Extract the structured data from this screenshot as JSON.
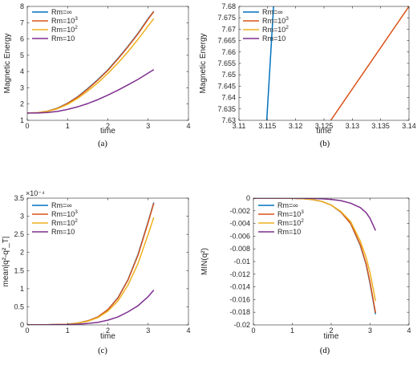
{
  "figure": {
    "colors": [
      "#0072BD",
      "#D95319",
      "#EDB120",
      "#7E2F8E"
    ]
  },
  "chart_data": [
    {
      "type": "line",
      "caption": "(a)",
      "xlabel": "time",
      "ylabel": "Magnetic Energy",
      "xlim": [
        0,
        4
      ],
      "ylim": [
        1,
        8
      ],
      "xticks": [
        0,
        1,
        2,
        3,
        4
      ],
      "yticks": [
        1,
        2,
        3,
        4,
        5,
        6,
        7,
        8
      ],
      "legend": {
        "position": "top-left",
        "entries": [
          {
            "base": "Rm=∞",
            "sup": ""
          },
          {
            "base": "Rm=10",
            "sup": "3"
          },
          {
            "base": "Rm=10",
            "sup": "2"
          },
          {
            "base": "Rm=10",
            "sup": ""
          }
        ]
      },
      "series": [
        {
          "x": [
            0,
            0.25,
            0.5,
            0.75,
            1,
            1.25,
            1.5,
            1.75,
            2,
            2.25,
            2.5,
            2.75,
            3,
            3.14
          ],
          "y": [
            1.45,
            1.47,
            1.56,
            1.75,
            2.05,
            2.45,
            2.95,
            3.5,
            4.1,
            4.8,
            5.55,
            6.35,
            7.25,
            7.7
          ]
        },
        {
          "x": [
            0,
            0.25,
            0.5,
            0.75,
            1,
            1.25,
            1.5,
            1.75,
            2,
            2.25,
            2.5,
            2.75,
            3,
            3.14
          ],
          "y": [
            1.45,
            1.47,
            1.56,
            1.74,
            2.04,
            2.43,
            2.92,
            3.47,
            4.07,
            4.77,
            5.52,
            6.32,
            7.22,
            7.68
          ]
        },
        {
          "x": [
            0,
            0.25,
            0.5,
            0.75,
            1,
            1.25,
            1.5,
            1.75,
            2,
            2.25,
            2.5,
            2.75,
            3,
            3.14
          ],
          "y": [
            1.45,
            1.47,
            1.55,
            1.71,
            1.98,
            2.35,
            2.8,
            3.3,
            3.88,
            4.52,
            5.22,
            5.98,
            6.8,
            7.25
          ]
        },
        {
          "x": [
            0,
            0.25,
            0.5,
            0.75,
            1,
            1.25,
            1.5,
            1.75,
            2,
            2.25,
            2.5,
            2.75,
            3,
            3.14
          ],
          "y": [
            1.45,
            1.45,
            1.48,
            1.55,
            1.67,
            1.83,
            2.03,
            2.27,
            2.55,
            2.85,
            3.18,
            3.52,
            3.9,
            4.12
          ]
        }
      ]
    },
    {
      "type": "line",
      "caption": "(b)",
      "xlabel": "time",
      "ylabel": "Magnetic Energy",
      "xlim": [
        3.11,
        3.14
      ],
      "ylim": [
        7.63,
        7.68
      ],
      "xticks": [
        3.11,
        3.115,
        3.12,
        3.125,
        3.13,
        3.135,
        3.14
      ],
      "xtick_labels": [
        "3.11",
        "3.115",
        "3.12",
        "3.125",
        "3.13",
        "3.135",
        "3.14"
      ],
      "yticks": [
        7.63,
        7.635,
        7.64,
        7.645,
        7.65,
        7.655,
        7.66,
        7.665,
        7.67,
        7.675,
        7.68
      ],
      "ytick_labels": [
        "7.63",
        "7.635",
        "7.64",
        "7.645",
        "7.65",
        "7.655",
        "7.66",
        "7.665",
        "7.67",
        "7.675",
        "7.68"
      ],
      "legend": {
        "position": "top-left",
        "entries": [
          {
            "base": "Rm=∞",
            "sup": ""
          },
          {
            "base": "Rm=10",
            "sup": "3"
          },
          {
            "base": "Rm=10",
            "sup": "2"
          },
          {
            "base": "Rm=10",
            "sup": ""
          }
        ]
      },
      "series": [
        {
          "x": [
            3.1149,
            3.1161
          ],
          "y": [
            7.63,
            7.68
          ]
        },
        {
          "x": [
            3.1262,
            3.14
          ],
          "y": [
            7.63,
            7.68
          ]
        },
        {
          "x": [],
          "y": []
        },
        {
          "x": [],
          "y": []
        }
      ]
    },
    {
      "type": "line",
      "caption": "(c)",
      "xlabel": "time",
      "ylabel": "mean|q²-q²_T|",
      "exponent_label": "×10⁻⁴",
      "xlim": [
        0,
        4
      ],
      "ylim": [
        0,
        3.5
      ],
      "xticks": [
        0,
        1,
        2,
        3,
        4
      ],
      "yticks": [
        0,
        0.5,
        1,
        1.5,
        2,
        2.5,
        3,
        3.5
      ],
      "legend": {
        "position": "top-left",
        "entries": [
          {
            "base": "Rm=∞",
            "sup": ""
          },
          {
            "base": "Rm=10",
            "sup": "3"
          },
          {
            "base": "Rm=10",
            "sup": "2"
          },
          {
            "base": "Rm=10",
            "sup": ""
          }
        ]
      },
      "series": [
        {
          "x": [
            0,
            0.5,
            1,
            1.25,
            1.5,
            1.75,
            2,
            2.25,
            2.5,
            2.75,
            3,
            3.14
          ],
          "y": [
            0,
            0.005,
            0.02,
            0.05,
            0.11,
            0.22,
            0.42,
            0.75,
            1.25,
            1.95,
            2.85,
            3.38
          ]
        },
        {
          "x": [
            0,
            0.5,
            1,
            1.25,
            1.5,
            1.75,
            2,
            2.25,
            2.5,
            2.75,
            3,
            3.14
          ],
          "y": [
            0,
            0.005,
            0.02,
            0.05,
            0.11,
            0.22,
            0.42,
            0.74,
            1.24,
            1.93,
            2.83,
            3.36
          ]
        },
        {
          "x": [
            0,
            0.5,
            1,
            1.25,
            1.5,
            1.75,
            2,
            2.25,
            2.5,
            2.75,
            3,
            3.14
          ],
          "y": [
            0,
            0.005,
            0.02,
            0.05,
            0.1,
            0.2,
            0.38,
            0.66,
            1.1,
            1.7,
            2.5,
            2.97
          ]
        },
        {
          "x": [
            0,
            0.5,
            1,
            1.25,
            1.5,
            1.75,
            2,
            2.25,
            2.5,
            2.75,
            3,
            3.14
          ],
          "y": [
            0,
            0.003,
            0.01,
            0.02,
            0.04,
            0.07,
            0.13,
            0.22,
            0.36,
            0.53,
            0.78,
            0.96
          ]
        }
      ]
    },
    {
      "type": "line",
      "caption": "(d)",
      "xlabel": "time",
      "ylabel": "MIN(q²)",
      "xlim": [
        0,
        4
      ],
      "ylim": [
        -0.02,
        0
      ],
      "xticks": [
        0,
        1,
        2,
        3,
        4
      ],
      "yticks": [
        -0.02,
        -0.018,
        -0.016,
        -0.014,
        -0.012,
        -0.01,
        -0.008,
        -0.006,
        -0.004,
        -0.002,
        0
      ],
      "ytick_labels": [
        "-0.02",
        "-0.018",
        "-0.016",
        "-0.014",
        "-0.012",
        "-0.01",
        "-0.008",
        "-0.006",
        "-0.004",
        "-0.002",
        "0"
      ],
      "legend": {
        "position": "top-left",
        "entries": [
          {
            "base": "Rm=∞",
            "sup": ""
          },
          {
            "base": "Rm=10",
            "sup": "3"
          },
          {
            "base": "Rm=10",
            "sup": "2"
          },
          {
            "base": "Rm=10",
            "sup": ""
          }
        ]
      },
      "series": [
        {
          "x": [
            0,
            0.5,
            1,
            1.25,
            1.5,
            1.75,
            2,
            2.25,
            2.5,
            2.75,
            2.9,
            3,
            3.14
          ],
          "y": [
            0,
            0,
            -3e-05,
            -8e-05,
            -0.0002,
            -0.0005,
            -0.0011,
            -0.0022,
            -0.004,
            -0.0075,
            -0.0105,
            -0.0135,
            -0.0183
          ]
        },
        {
          "x": [
            0,
            0.5,
            1,
            1.25,
            1.5,
            1.75,
            2,
            2.25,
            2.5,
            2.75,
            2.9,
            3,
            3.14
          ],
          "y": [
            0,
            0,
            -3e-05,
            -8e-05,
            -0.0002,
            -0.0005,
            -0.0011,
            -0.0022,
            -0.004,
            -0.0074,
            -0.0104,
            -0.0133,
            -0.0181
          ]
        },
        {
          "x": [
            0,
            0.5,
            1,
            1.25,
            1.5,
            1.75,
            2,
            2.25,
            2.5,
            2.75,
            2.9,
            3,
            3.14
          ],
          "y": [
            0,
            0,
            -3e-05,
            -8e-05,
            -0.0002,
            -0.0005,
            -0.0011,
            -0.0021,
            -0.0037,
            -0.0068,
            -0.0094,
            -0.0118,
            -0.0162
          ]
        },
        {
          "x": [
            0,
            0.5,
            1,
            1.25,
            1.5,
            1.75,
            2,
            2.25,
            2.5,
            2.75,
            2.9,
            3,
            3.14
          ],
          "y": [
            0,
            0,
            0,
            -2e-05,
            -5e-05,
            -0.0001,
            -0.0002,
            -0.0004,
            -0.0008,
            -0.0015,
            -0.0023,
            -0.0032,
            -0.0051
          ]
        }
      ]
    }
  ]
}
